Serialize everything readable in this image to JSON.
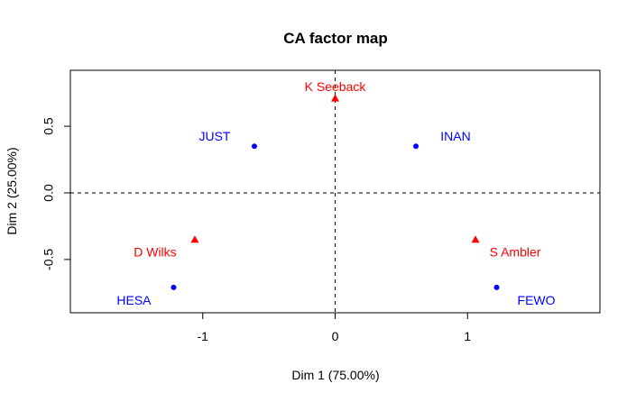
{
  "chart_data": {
    "type": "scatter",
    "title": "CA factor map",
    "xlabel": "Dim 1 (75.00%)",
    "ylabel": "Dim 2 (25.00%)",
    "xlim": [
      -2.0,
      2.0
    ],
    "ylim": [
      -0.9,
      0.92
    ],
    "x_ticks": [
      -1,
      0,
      1
    ],
    "x_tick_labels": [
      "-1",
      "0",
      "1"
    ],
    "y_ticks": [
      -0.5,
      0.0,
      0.5
    ],
    "y_tick_labels": [
      "-0.5",
      "0.0",
      "0.5"
    ],
    "reference_lines": {
      "x": 0,
      "y": 0,
      "style": "dashed"
    },
    "grid": false,
    "legend": "none",
    "series": [
      {
        "marker": "circle",
        "color": "#0000ff",
        "points": [
          {
            "label": "JUST",
            "x": -0.61,
            "y": 0.35
          },
          {
            "label": "INAN",
            "x": 0.61,
            "y": 0.35
          },
          {
            "label": "HESA",
            "x": -1.22,
            "y": -0.71
          },
          {
            "label": "FEWO",
            "x": 1.22,
            "y": -0.71
          }
        ]
      },
      {
        "marker": "triangle",
        "color": "#ff0000",
        "points": [
          {
            "label": "K Seeback",
            "x": 0.0,
            "y": 0.71
          },
          {
            "label": "D Wilks",
            "x": -1.06,
            "y": -0.35
          },
          {
            "label": "S Ambler",
            "x": 1.06,
            "y": -0.35
          }
        ]
      }
    ]
  }
}
